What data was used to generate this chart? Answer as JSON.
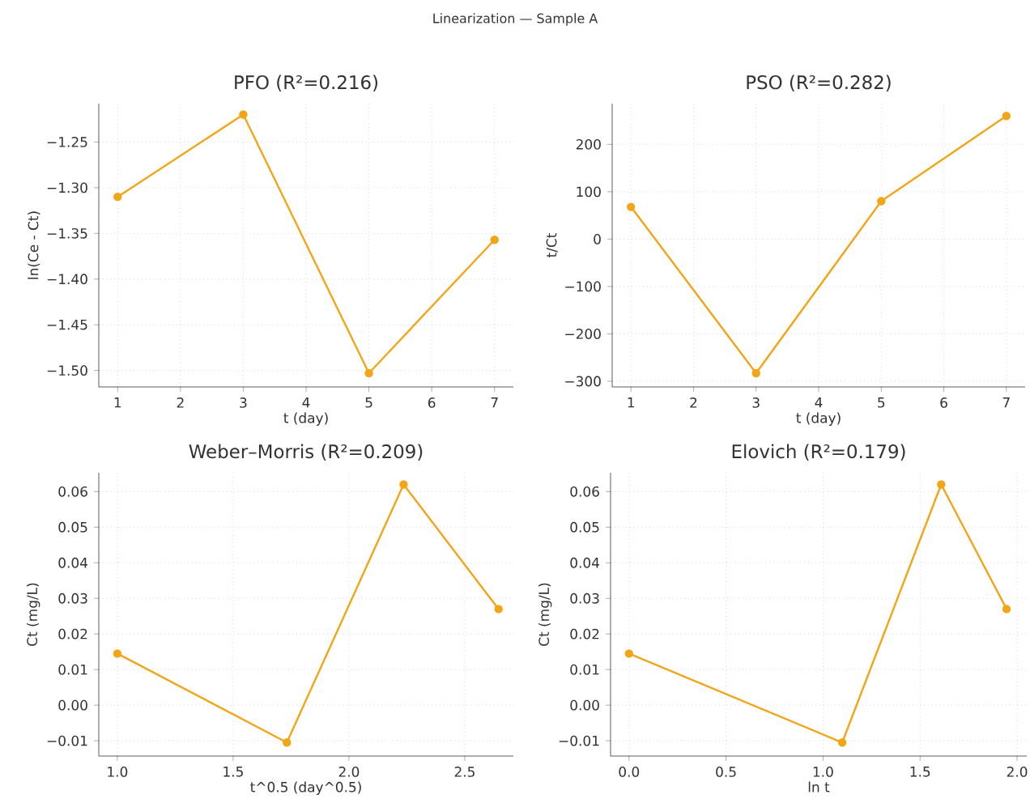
{
  "chart_data": [
    {
      "type": "line",
      "title": "PFO (R²=0.216)",
      "xlabel": "t (day)",
      "ylabel": "ln(Ce - Ct)",
      "annotations": [
        "Linearization — Sample A"
      ],
      "x": [
        1,
        3,
        5,
        7
      ],
      "series": [
        {
          "color": "#f2a516",
          "values": [
            -1.31,
            -1.22,
            -1.503,
            -1.357
          ]
        }
      ],
      "xlim": [
        0.7,
        7.3
      ],
      "ylim": [
        -1.518,
        -1.208
      ],
      "xticks": [
        1,
        2,
        3,
        4,
        5,
        6,
        7
      ],
      "yticks": [
        {
          "value": -1.5,
          "label": "−1.50"
        },
        {
          "value": -1.45,
          "label": "−1.45"
        },
        {
          "value": -1.4,
          "label": "−1.40"
        },
        {
          "value": -1.35,
          "label": "−1.35"
        },
        {
          "value": -1.3,
          "label": "−1.30"
        },
        {
          "value": -1.25,
          "label": "−1.25"
        }
      ],
      "grid": true,
      "marker": "circle",
      "line_style": "solid"
    },
    {
      "type": "line",
      "title": "PSO (R²=0.282)",
      "xlabel": "t (day)",
      "ylabel": "t/Ct",
      "x": [
        1,
        3,
        5,
        7
      ],
      "series": [
        {
          "color": "#f2a516",
          "values": [
            68,
            -283,
            80,
            260
          ]
        }
      ],
      "xlim": [
        0.7,
        7.3
      ],
      "ylim": [
        -312,
        286
      ],
      "xticks": [
        1,
        2,
        3,
        4,
        5,
        6,
        7
      ],
      "yticks": [
        {
          "value": -300,
          "label": "−300"
        },
        {
          "value": -200,
          "label": "−200"
        },
        {
          "value": -100,
          "label": "−100"
        },
        0,
        100,
        200
      ],
      "grid": true,
      "marker": "circle",
      "line_style": "solid"
    },
    {
      "type": "line",
      "title": "Weber–Morris (R²=0.209)",
      "xlabel": "t^0.5 (day^0.5)",
      "ylabel": "Ct (mg/L)",
      "x": [
        1,
        1.732,
        2.236,
        2.646
      ],
      "series": [
        {
          "color": "#f2a516",
          "values": [
            0.0145,
            -0.0105,
            0.062,
            0.027
          ]
        }
      ],
      "xlim": [
        0.92,
        2.71
      ],
      "ylim": [
        -0.0143,
        0.0653
      ],
      "xticks": [
        {
          "value": 1,
          "label": "1.0"
        },
        1.5,
        {
          "value": 2,
          "label": "2.0"
        },
        2.5
      ],
      "yticks": [
        {
          "value": -0.01,
          "label": "−0.01"
        },
        {
          "value": 0,
          "label": "0.00"
        },
        0.01,
        0.02,
        0.03,
        0.04,
        0.05,
        0.06
      ],
      "grid": true,
      "marker": "circle",
      "line_style": "solid"
    },
    {
      "type": "line",
      "title": "Elovich (R²=0.179)",
      "xlabel": "ln t",
      "ylabel": "Ct (mg/L)",
      "x": [
        0,
        1.099,
        1.609,
        1.946
      ],
      "series": [
        {
          "color": "#f2a516",
          "values": [
            0.0145,
            -0.0105,
            0.062,
            0.027
          ]
        }
      ],
      "xlim": [
        -0.095,
        2.05
      ],
      "ylim": [
        -0.0143,
        0.0653
      ],
      "xticks": [
        {
          "value": 0,
          "label": "0.0"
        },
        0.5,
        {
          "value": 1,
          "label": "1.0"
        },
        1.5,
        {
          "value": 2,
          "label": "2.0"
        }
      ],
      "yticks": [
        {
          "value": -0.01,
          "label": "−0.01"
        },
        {
          "value": 0,
          "label": "0.00"
        },
        0.01,
        0.02,
        0.03,
        0.04,
        0.05,
        0.06
      ],
      "grid": true,
      "marker": "circle",
      "line_style": "solid"
    }
  ]
}
